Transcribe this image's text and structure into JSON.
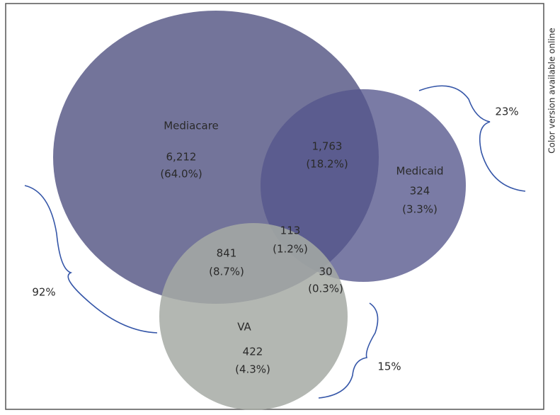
{
  "sets": [
    {
      "label": "Mediacare"
    },
    {
      "label": "Medicaid"
    },
    {
      "label": "VA"
    }
  ],
  "regions": {
    "mediacare_only": {
      "count": "6,212",
      "percent": "(64.0%)"
    },
    "mediacare_medicaid": {
      "count": "1,763",
      "percent": "(18.2%)"
    },
    "medicaid_only": {
      "count": "324",
      "percent": "(3.3%)"
    },
    "all_three": {
      "count": "113",
      "percent": "(1.2%)"
    },
    "mediacare_va": {
      "count": "841",
      "percent": "(8.7%)"
    },
    "medicaid_va": {
      "count": "30",
      "percent": "(0.3%)"
    },
    "va_only": {
      "count": "422",
      "percent": "(4.3%)"
    }
  },
  "braces": {
    "medicaid": "23%",
    "mediacare": "92%",
    "va": "15%"
  },
  "side_note": "Color version available online"
}
